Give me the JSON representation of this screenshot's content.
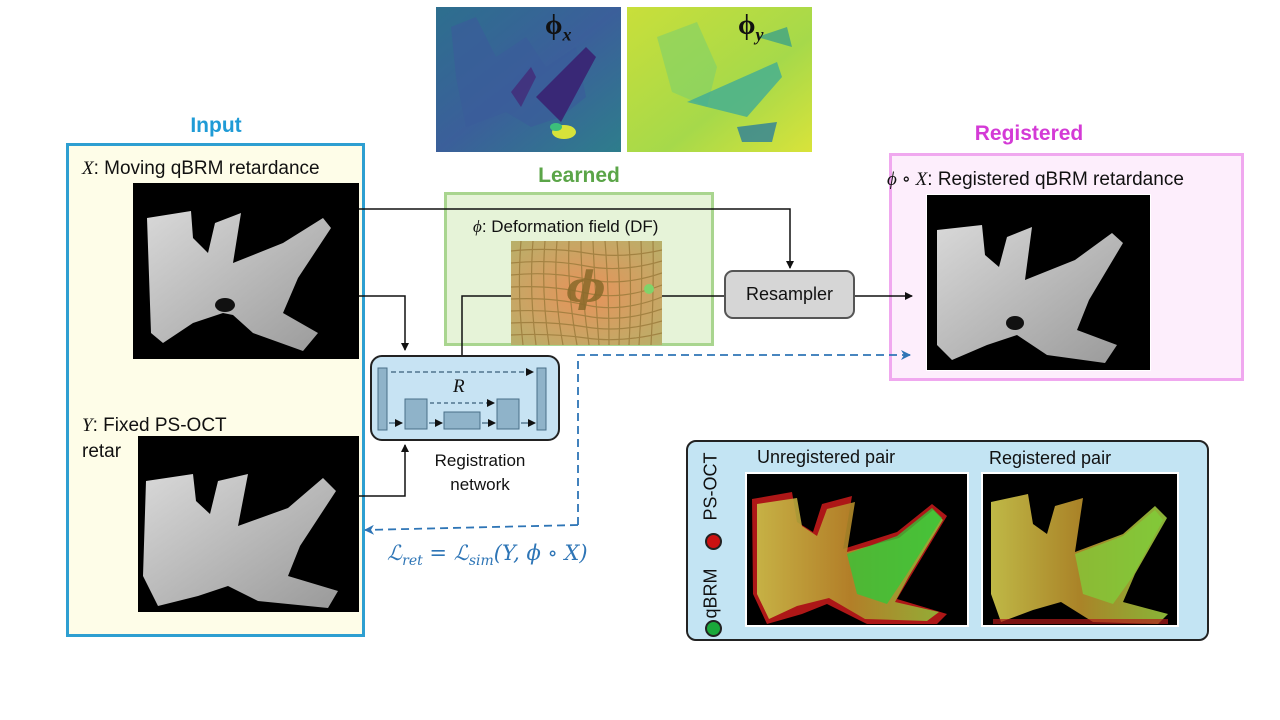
{
  "input": {
    "title": "Input",
    "moving_var": "X",
    "moving_label": ": Moving qBRM retardance",
    "fixed_var": "Y",
    "fixed_label_1": ": Fixed PS-OCT",
    "fixed_label_2": "retar"
  },
  "learned": {
    "title": "Learned",
    "df_var": "ϕ",
    "df_label": ": Deformation field (DF)",
    "phi_symbol": "ϕ",
    "phi_x_base": "ϕ",
    "phi_x_sub": "x",
    "phi_y_base": "ϕ",
    "phi_y_sub": "y"
  },
  "resampler": {
    "label": "Resampler"
  },
  "network": {
    "label_line1": "Registration",
    "label_line2": "network",
    "skip_symbol": "R"
  },
  "registered": {
    "title": "Registered",
    "expr": "ϕ ∘ X",
    "label": ": Registered qBRM retardance"
  },
  "loss": {
    "L": "ℒ",
    "L_sub": "ret",
    "eq": " = ",
    "L2": "ℒ",
    "L2_sub": "sim",
    "args": "(Y, ϕ ∘ X)"
  },
  "comparison": {
    "unregistered": "Unregistered pair",
    "registered": "Registered pair",
    "legend_psoct": "PS-OCT",
    "legend_qbrm": "qBRM"
  },
  "colors": {
    "input_border": "#2e9fd1",
    "input_title": "#1f9bd6",
    "input_fill": "#fefde8",
    "learned_border": "#a9d58f",
    "learned_title": "#5ba548",
    "registered_border": "#f0a8ef",
    "registered_fill": "#fdeefc",
    "registered_title": "#d43ad6",
    "network_fill": "#c7e3f3",
    "loss_color": "#2e75b6",
    "comparison_fill": "#c3e4f3",
    "legend_red": "#cc1111",
    "legend_green": "#1aa83a"
  }
}
